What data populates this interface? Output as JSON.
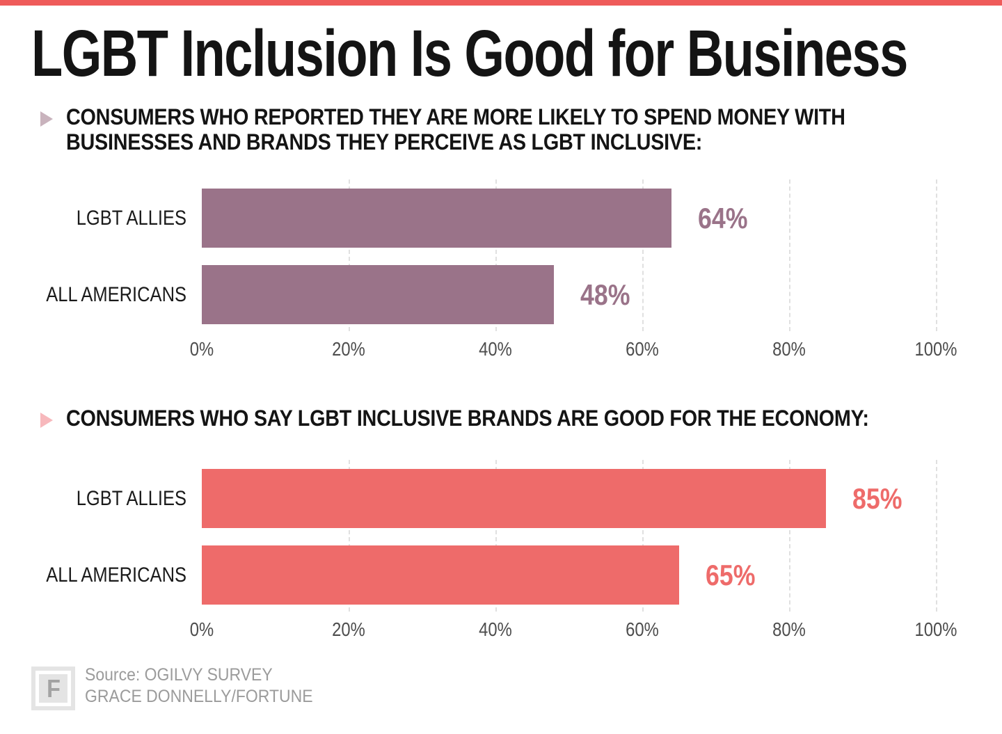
{
  "page": {
    "title": "LGBT Inclusion Is Good for Business",
    "background": "#ffffff",
    "top_bar_color": "#ef5b5a"
  },
  "chart_data": [
    {
      "type": "bar",
      "orientation": "horizontal",
      "title": "CONSUMERS WHO REPORTED THEY ARE MORE LIKELY TO SPEND MONEY WITH BUSINESSES AND BRANDS THEY PERCEIVE AS LGBT INCLUSIVE:",
      "title_lines": [
        "CONSUMERS WHO REPORTED THEY ARE MORE LIKELY TO SPEND MONEY WITH",
        "BUSINESSES AND BRANDS THEY PERCEIVE AS LGBT INCLUSIVE:"
      ],
      "categories": [
        "LGBT ALLIES",
        "ALL AMERICANS"
      ],
      "values": [
        64,
        48
      ],
      "value_labels": [
        "64%",
        "48%"
      ],
      "xlabel": "",
      "xlim": [
        0,
        100
      ],
      "x_ticks": [
        "0%",
        "20%",
        "40%",
        "60%",
        "80%",
        "100%"
      ],
      "grid": "vertical-dashed",
      "legend": "none",
      "bar_color": "#9a7389",
      "value_color": "#9a7389",
      "bullet_color": "#c9b3bd",
      "grid_color": "#e0e0e0",
      "tick_color": "#4d4d4d"
    },
    {
      "type": "bar",
      "orientation": "horizontal",
      "title": "CONSUMERS WHO SAY LGBT INCLUSIVE BRANDS ARE GOOD FOR THE ECONOMY:",
      "title_lines": [
        "CONSUMERS WHO SAY LGBT INCLUSIVE BRANDS ARE GOOD FOR THE ECONOMY:"
      ],
      "categories": [
        "LGBT ALLIES",
        "ALL AMERICANS"
      ],
      "values": [
        85,
        65
      ],
      "value_labels": [
        "85%",
        "65%"
      ],
      "xlabel": "",
      "xlim": [
        0,
        100
      ],
      "x_ticks": [
        "0%",
        "20%",
        "40%",
        "60%",
        "80%",
        "100%"
      ],
      "grid": "vertical-dashed",
      "legend": "none",
      "bar_color": "#ee6b6a",
      "value_color": "#ee6b6a",
      "bullet_color": "#f7b8bc",
      "grid_color": "#e0e0e0",
      "tick_color": "#4d4d4d"
    }
  ],
  "footer": {
    "logo_letter": "F",
    "source_line1": "Source: OGILVY SURVEY",
    "source_line2": "GRACE DONNELLY/FORTUNE"
  }
}
